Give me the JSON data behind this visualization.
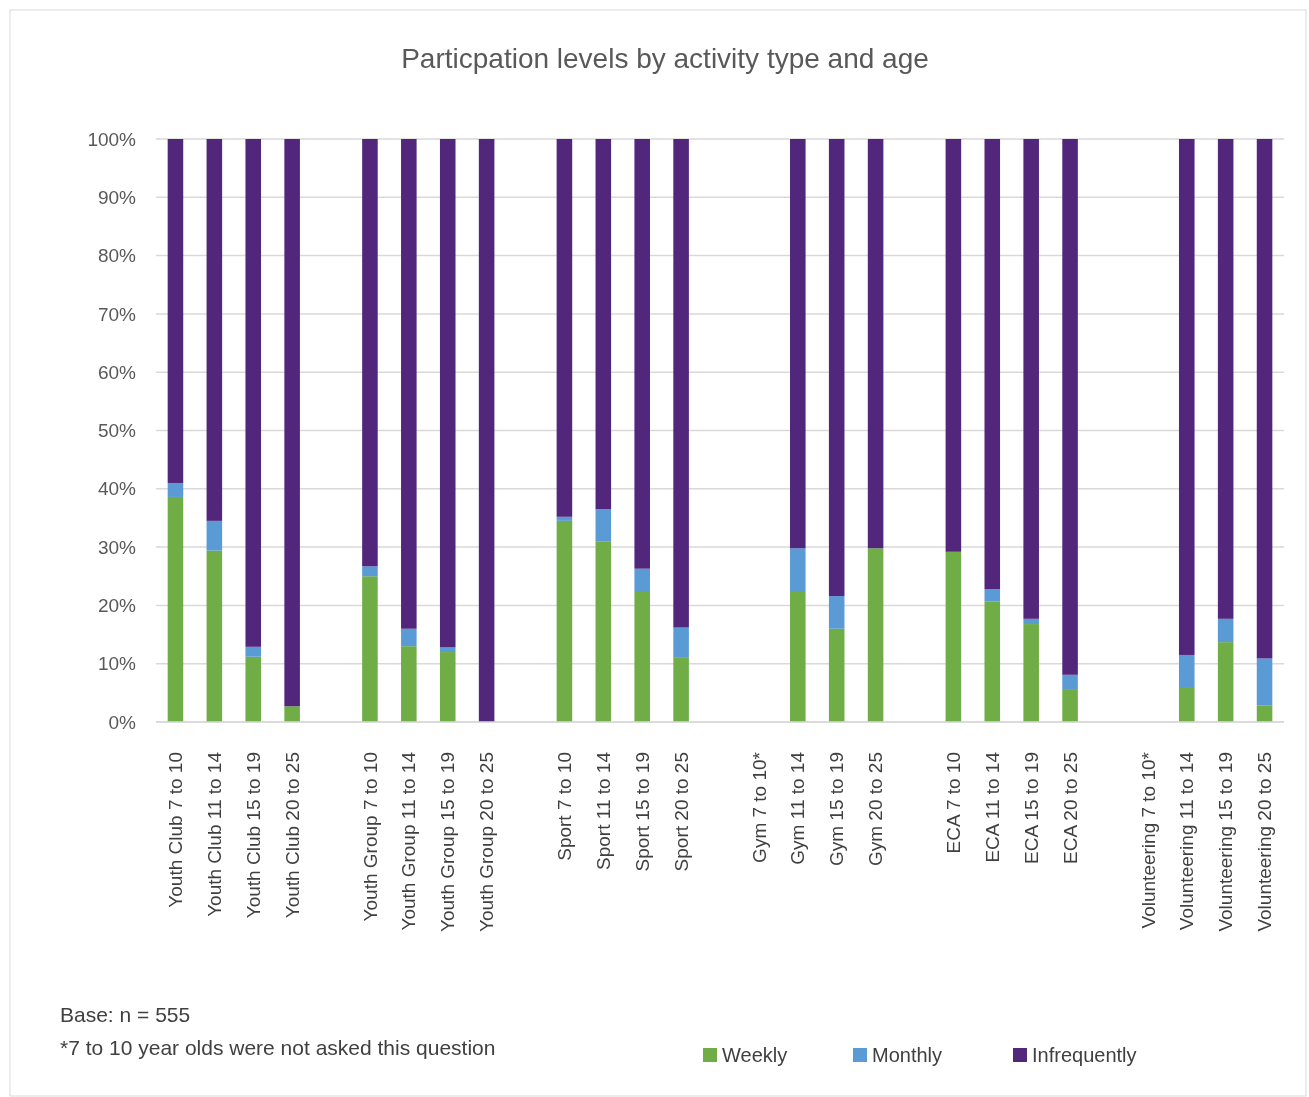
{
  "chart_data": {
    "type": "bar",
    "title": "Particpation levels by activity type and age",
    "stacked": true,
    "categories": [
      "Youth Club 7 to 10",
      "Youth Club 11 to 14",
      "Youth Club 15 to 19",
      "Youth Club 20 to 25",
      null,
      "Youth Group 7 to 10",
      "Youth Group 11 to 14",
      "Youth Group 15 to 19",
      "Youth Group 20 to 25",
      null,
      "Sport 7 to 10",
      "Sport 11 to 14",
      "Sport 15 to 19",
      "Sport 20 to 25",
      null,
      "Gym 7 to 10*",
      "Gym 11 to 14",
      "Gym 15 to 19",
      "Gym 20 to 25",
      null,
      "ECA 7 to 10",
      "ECA 11 to 14",
      "ECA 15 to 19",
      "ECA 20 to 25",
      null,
      "Volunteering 7 to 10*",
      "Volunteering 11 to 14",
      "Volunteering 15 to 19",
      "Volunteering 20 to 25"
    ],
    "series": [
      {
        "name": "Weekly",
        "color": "#70ad47",
        "values": [
          38.6,
          29.4,
          11.2,
          2.7,
          null,
          25,
          13,
          12,
          0,
          null,
          34.5,
          31,
          22.3,
          11,
          null,
          null,
          22.3,
          16,
          29.8,
          null,
          29.2,
          20.7,
          16.8,
          5.5,
          null,
          null,
          6,
          13.7,
          2.8
        ]
      },
      {
        "name": "Monthly",
        "color": "#5b9bd5",
        "values": [
          2.4,
          5.1,
          1.7,
          0,
          null,
          1.7,
          3,
          0.8,
          0,
          null,
          0.7,
          5.5,
          4,
          5.2,
          null,
          null,
          7.5,
          5.6,
          0,
          null,
          0,
          2.1,
          0.9,
          2.6,
          null,
          null,
          5.5,
          4,
          8.1
        ]
      },
      {
        "name": "Infrequently",
        "color": "#51267b",
        "values": [
          59,
          65.5,
          87.1,
          97.3,
          null,
          73.3,
          84,
          87.2,
          100,
          null,
          64.8,
          63.5,
          73.7,
          83.8,
          null,
          null,
          70.2,
          78.4,
          70.2,
          null,
          70.8,
          77.2,
          82.3,
          91.9,
          null,
          null,
          88.5,
          82.3,
          89.1
        ]
      }
    ],
    "ylim": [
      0,
      100
    ],
    "yticks": [
      {
        "value": 0,
        "label": "0%"
      },
      {
        "value": 10,
        "label": "10%"
      },
      {
        "value": 20,
        "label": "20%"
      },
      {
        "value": 30,
        "label": "30%"
      },
      {
        "value": 40,
        "label": "40%"
      },
      {
        "value": 50,
        "label": "50%"
      },
      {
        "value": 60,
        "label": "60%"
      },
      {
        "value": 70,
        "label": "70%"
      },
      {
        "value": 80,
        "label": "80%"
      },
      {
        "value": 90,
        "label": "90%"
      },
      {
        "value": 100,
        "label": "100%"
      }
    ],
    "grid": "y",
    "legend": "bottom",
    "annotations": [
      "Base: n = 555",
      "*7 to 10 year olds were not asked this question"
    ]
  }
}
